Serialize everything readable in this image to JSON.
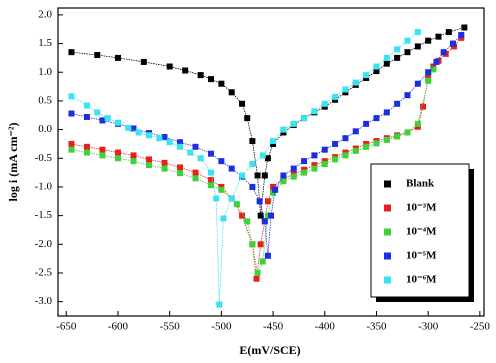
{
  "chart_data": {
    "type": "line",
    "x_label": "E(mV/SCE)",
    "y_label": "log i (mA cm⁻²)",
    "xlim": [
      -658,
      -246
    ],
    "ylim": [
      -3.25,
      2.12
    ],
    "xticks": [
      -650,
      -600,
      -550,
      -500,
      -450,
      -400,
      -350,
      -300,
      -250
    ],
    "yticks": [
      {
        "value": 2,
        "label": "2.0"
      },
      1.5,
      {
        "value": 1,
        "label": "1.0"
      },
      0.5,
      {
        "value": 0,
        "label": "0.0"
      },
      -0.5,
      {
        "value": -1,
        "label": "-1.0"
      },
      -1.5,
      {
        "value": -2,
        "label": "-2.0"
      },
      -2.5,
      {
        "value": -3,
        "label": "-3.0"
      }
    ],
    "legend": "lower right",
    "series": [
      {
        "name": "Blank",
        "color": "#000000",
        "x": [
          -645,
          -620,
          -600,
          -575,
          -550,
          -535,
          -520,
          -510,
          -500,
          -490,
          -480,
          -475,
          -470,
          -465,
          -462,
          -458,
          -455,
          -450,
          -440,
          -430,
          -420,
          -410,
          -400,
          -390,
          -380,
          -370,
          -360,
          -350,
          -340,
          -330,
          -320,
          -310,
          -300,
          -290,
          -280,
          -265
        ],
        "values": [
          1.35,
          1.3,
          1.25,
          1.18,
          1.1,
          1.03,
          0.95,
          0.88,
          0.8,
          0.65,
          0.45,
          0.2,
          -0.2,
          -0.8,
          -1.5,
          -0.8,
          -0.5,
          -0.25,
          -0.05,
          0.08,
          0.2,
          0.3,
          0.4,
          0.52,
          0.65,
          0.78,
          0.9,
          1.02,
          1.15,
          1.25,
          1.35,
          1.45,
          1.55,
          1.62,
          1.7,
          1.78
        ]
      },
      {
        "name": "10⁻³M",
        "color": "#e8201c",
        "x": [
          -645,
          -630,
          -615,
          -600,
          -585,
          -570,
          -555,
          -540,
          -525,
          -510,
          -500,
          -490,
          -480,
          -470,
          -466,
          -462,
          -458,
          -455,
          -450,
          -440,
          -430,
          -420,
          -410,
          -400,
          -390,
          -380,
          -370,
          -360,
          -350,
          -340,
          -330,
          -320,
          -310,
          -305,
          -300,
          -295,
          -290,
          -283,
          -275,
          -268
        ],
        "values": [
          -0.25,
          -0.3,
          -0.35,
          -0.4,
          -0.45,
          -0.52,
          -0.58,
          -0.66,
          -0.75,
          -0.88,
          -1.0,
          -1.2,
          -1.5,
          -2.0,
          -2.6,
          -2.0,
          -1.6,
          -1.25,
          -1.0,
          -0.85,
          -0.78,
          -0.7,
          -0.62,
          -0.55,
          -0.48,
          -0.4,
          -0.33,
          -0.25,
          -0.2,
          -0.15,
          -0.1,
          -0.05,
          0.05,
          0.4,
          0.9,
          1.1,
          1.2,
          1.32,
          1.45,
          1.6
        ]
      },
      {
        "name": "10⁻⁴M",
        "color": "#3ed13a",
        "x": [
          -645,
          -630,
          -615,
          -600,
          -585,
          -570,
          -555,
          -540,
          -525,
          -510,
          -500,
          -485,
          -475,
          -470,
          -465,
          -460,
          -455,
          -450,
          -440,
          -430,
          -420,
          -410,
          -400,
          -390,
          -380,
          -370,
          -360,
          -350,
          -340,
          -330,
          -320,
          -310,
          -300,
          -295
        ],
        "values": [
          -0.35,
          -0.4,
          -0.45,
          -0.5,
          -0.55,
          -0.62,
          -0.68,
          -0.76,
          -0.85,
          -0.97,
          -1.05,
          -1.3,
          -1.6,
          -2.0,
          -2.5,
          -2.3,
          -1.5,
          -1.1,
          -0.9,
          -0.82,
          -0.75,
          -0.68,
          -0.6,
          -0.52,
          -0.45,
          -0.37,
          -0.3,
          -0.24,
          -0.18,
          -0.12,
          -0.05,
          0.1,
          0.85,
          1.05
        ]
      },
      {
        "name": "10⁻⁵M",
        "color": "#1c2ee0",
        "x": [
          -645,
          -630,
          -615,
          -600,
          -585,
          -570,
          -555,
          -540,
          -525,
          -510,
          -500,
          -490,
          -480,
          -470,
          -463,
          -458,
          -455,
          -452,
          -448,
          -440,
          -430,
          -420,
          -410,
          -400,
          -390,
          -380,
          -370,
          -360,
          -350,
          -340,
          -330,
          -320,
          -310,
          -300,
          -292,
          -285,
          -276,
          -268
        ],
        "values": [
          0.28,
          0.22,
          0.16,
          0.1,
          0.02,
          -0.06,
          -0.13,
          -0.22,
          -0.3,
          -0.42,
          -0.55,
          -0.68,
          -0.82,
          -1.0,
          -1.25,
          -1.6,
          -2.2,
          -1.5,
          -1.05,
          -0.8,
          -0.68,
          -0.55,
          -0.45,
          -0.35,
          -0.25,
          -0.15,
          -0.03,
          0.1,
          0.2,
          0.3,
          0.45,
          0.6,
          0.8,
          1.0,
          1.18,
          1.35,
          1.5,
          1.65
        ]
      },
      {
        "name": "10⁻⁶M",
        "color": "#38e4f0",
        "x": [
          -645,
          -630,
          -620,
          -610,
          -600,
          -590,
          -580,
          -570,
          -560,
          -550,
          -540,
          -530,
          -520,
          -510,
          -505,
          -502,
          -498,
          -490,
          -480,
          -470,
          -460,
          -450,
          -440,
          -430,
          -420,
          -410,
          -400,
          -390,
          -380,
          -370,
          -360,
          -350,
          -340,
          -330,
          -320,
          -310
        ],
        "values": [
          0.58,
          0.42,
          0.3,
          0.2,
          0.12,
          0.03,
          -0.05,
          -0.1,
          -0.15,
          -0.22,
          -0.3,
          -0.4,
          -0.5,
          -0.75,
          -1.2,
          -3.05,
          -1.55,
          -1.2,
          -0.8,
          -0.6,
          -0.45,
          -0.2,
          0.0,
          0.1,
          0.2,
          0.32,
          0.45,
          0.57,
          0.7,
          0.82,
          0.95,
          1.1,
          1.25,
          1.4,
          1.55,
          1.7
        ]
      }
    ]
  }
}
